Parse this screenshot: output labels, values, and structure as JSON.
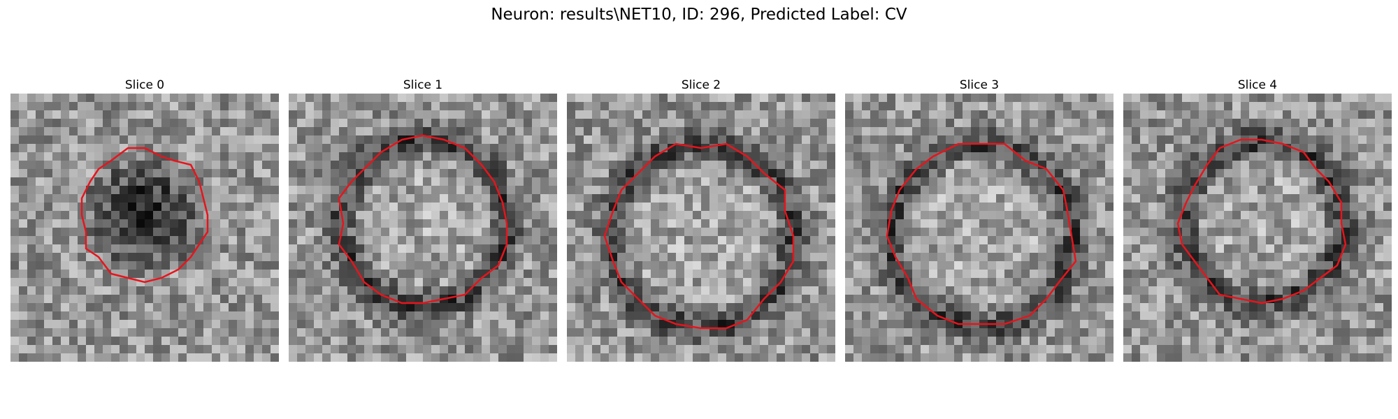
{
  "figure": {
    "title": "Neuron: results\\NET10, ID: 296, Predicted Label: CV"
  },
  "colors": {
    "contour": "#e8141c",
    "background": "#ffffff"
  },
  "slices": [
    {
      "title": "Slice 0",
      "center": [
        0.5,
        0.45
      ],
      "radius": [
        0.24,
        0.24
      ],
      "ring_dark": false,
      "inner_dark": true
    },
    {
      "title": "Slice 1",
      "center": [
        0.5,
        0.48
      ],
      "radius": [
        0.31,
        0.31
      ],
      "ring_dark": true,
      "inner_dark": false
    },
    {
      "title": "Slice 2",
      "center": [
        0.5,
        0.53
      ],
      "radius": [
        0.34,
        0.34
      ],
      "ring_dark": true,
      "inner_dark": false
    },
    {
      "title": "Slice 3",
      "center": [
        0.51,
        0.53
      ],
      "radius": [
        0.34,
        0.34
      ],
      "ring_dark": true,
      "inner_dark": false
    },
    {
      "title": "Slice 4",
      "center": [
        0.52,
        0.48
      ],
      "radius": [
        0.3,
        0.3
      ],
      "ring_dark": true,
      "inner_dark": false
    }
  ]
}
